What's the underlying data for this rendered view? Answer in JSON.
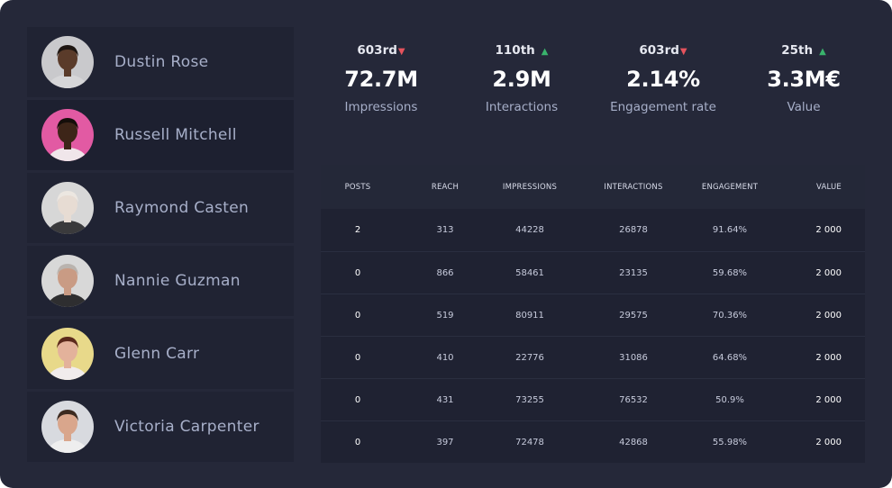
{
  "people": [
    {
      "name": "Dustin Rose",
      "avatar_colors": {
        "bg": "#c9c9cc",
        "skin": "#5a3b2a",
        "hair": "#1e1612",
        "shirt": "#d6d6d8"
      }
    },
    {
      "name": "Russell Mitchell",
      "avatar_colors": {
        "bg": "#e25aa3",
        "skin": "#3d2518",
        "hair": "#150e0a",
        "shirt": "#f0e6ea"
      }
    },
    {
      "name": "Raymond Casten",
      "avatar_colors": {
        "bg": "#d7d7d7",
        "skin": "#e7dcd3",
        "hair": "#ece7e1",
        "shirt": "#3a3a3c"
      }
    },
    {
      "name": "Nannie Guzman",
      "avatar_colors": {
        "bg": "#d8d8d8",
        "skin": "#c99b84",
        "hair": "#b9b3ae",
        "shirt": "#2e2e30"
      }
    },
    {
      "name": "Glenn Carr",
      "avatar_colors": {
        "bg": "#e8d98a",
        "skin": "#e3b29b",
        "hair": "#5c2a1c",
        "shirt": "#f1ecec"
      }
    },
    {
      "name": "Victoria Carpenter",
      "avatar_colors": {
        "bg": "#d8dadf",
        "skin": "#d9a68c",
        "hair": "#3b2a20",
        "shirt": "#eeeeee"
      }
    }
  ],
  "stats": [
    {
      "rank": "603rd",
      "trend": "down",
      "value": "72.7M",
      "label": "Impressions"
    },
    {
      "rank": "110th",
      "trend": "up",
      "value": "2.9M",
      "label": "Interactions"
    },
    {
      "rank": "603rd",
      "trend": "down",
      "value": "2.14%",
      "label": "Engagement rate"
    },
    {
      "rank": "25th",
      "trend": "up",
      "value": "3.3M€",
      "label": "Value"
    }
  ],
  "trend_colors": {
    "up": "#39b36c",
    "down": "#e5535d"
  },
  "table": {
    "headers": [
      "POSTS",
      "REACH",
      "IMPRESSIONS",
      "INTERACTIONS",
      "ENGAGEMENT",
      "VALUE"
    ],
    "rows": [
      [
        "2",
        "313",
        "44228",
        "26878",
        "91.64%",
        "2 000"
      ],
      [
        "0",
        "866",
        "58461",
        "23135",
        "59.68%",
        "2 000"
      ],
      [
        "0",
        "519",
        "80911",
        "29575",
        "70.36%",
        "2 000"
      ],
      [
        "0",
        "410",
        "22776",
        "31086",
        "64.68%",
        "2 000"
      ],
      [
        "0",
        "431",
        "73255",
        "76532",
        "50.9%",
        "2 000"
      ],
      [
        "0",
        "397",
        "72478",
        "42868",
        "55.98%",
        "2 000"
      ]
    ]
  }
}
